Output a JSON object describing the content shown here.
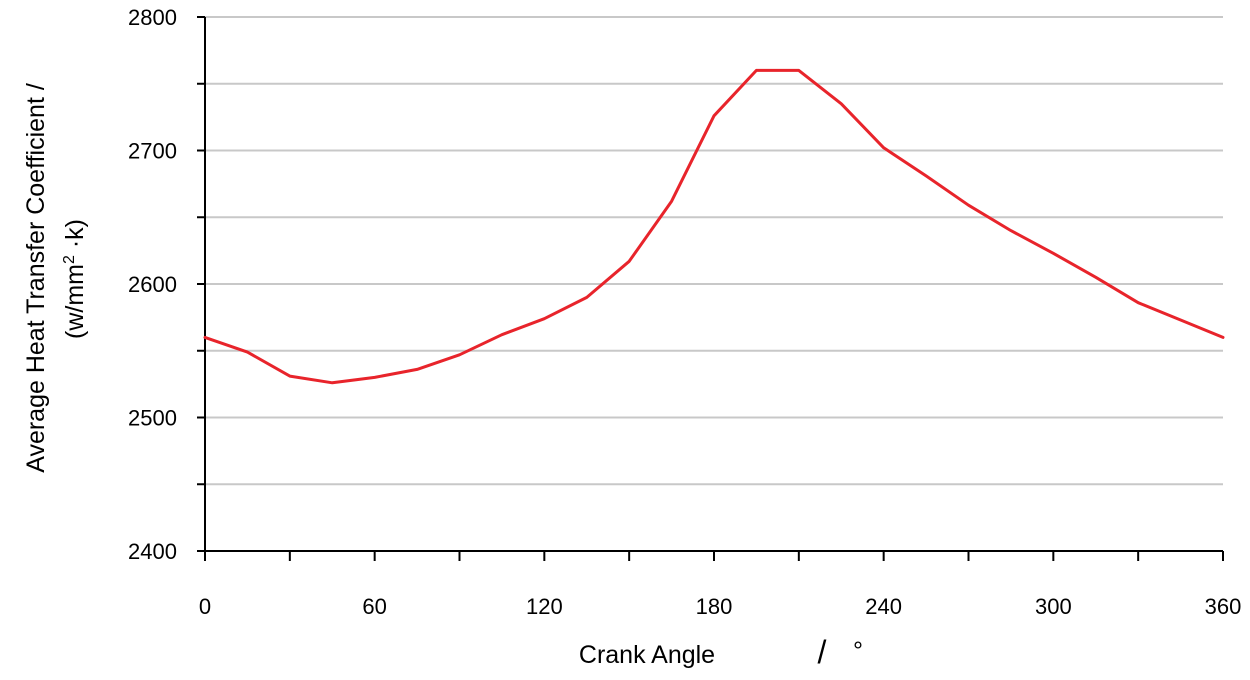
{
  "chart_data": {
    "type": "line",
    "xlabel": "Crank   Angle",
    "xlabel_slash": "/",
    "xlabel_unit": "°",
    "ylabel_line1": "Average Heat Transfer Coefficient /",
    "ylabel_line2_main": "(w/mm",
    "ylabel_line2_sup": "2",
    "ylabel_line2_tail": " ·k)",
    "xlim": [
      0,
      360
    ],
    "ylim": [
      2400,
      2800
    ],
    "x_ticks": [
      "0",
      "60",
      "120",
      "180",
      "240",
      "300",
      "360"
    ],
    "x_minor_step": 30,
    "y_ticks": [
      "2400",
      "2500",
      "2600",
      "2700",
      "2800"
    ],
    "y_grid_step": 50,
    "grid": true,
    "series": [
      {
        "color": "#e8242b",
        "x": [
          0,
          15,
          30,
          45,
          60,
          75,
          90,
          105,
          120,
          135,
          150,
          165,
          180,
          195,
          210,
          225,
          240,
          255,
          270,
          285,
          300,
          315,
          330,
          345,
          360
        ],
        "y": [
          2560,
          2549,
          2531,
          2526,
          2530,
          2536,
          2547,
          2562,
          2574,
          2590,
          2617,
          2662,
          2726,
          2760,
          2760,
          2735,
          2702,
          2681,
          2659,
          2640,
          2623,
          2605,
          2586,
          2573,
          2560
        ]
      }
    ]
  }
}
